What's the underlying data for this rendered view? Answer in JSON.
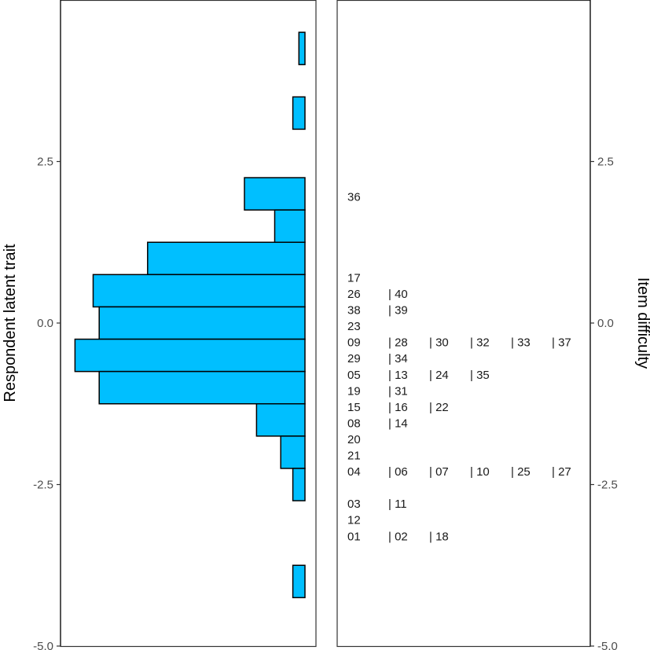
{
  "chart_data": {
    "type": "wright_map",
    "left_panel": {
      "type": "histogram",
      "orientation": "horizontal",
      "ylabel": "Respondent latent trait",
      "yticks": [
        "2.5",
        "0.0",
        "-2.5",
        "-5.0"
      ],
      "ylim": [
        -5.0,
        5.0
      ],
      "bar_color": "#00BFFF",
      "bins": [
        {
          "y_low": 4.0,
          "y_high": 4.5,
          "count": 1
        },
        {
          "y_low": 3.0,
          "y_high": 3.5,
          "count": 2
        },
        {
          "y_low": 1.75,
          "y_high": 2.25,
          "count": 10
        },
        {
          "y_low": 1.25,
          "y_high": 1.75,
          "count": 5
        },
        {
          "y_low": 0.75,
          "y_high": 1.25,
          "count": 26
        },
        {
          "y_low": 0.25,
          "y_high": 0.75,
          "count": 35
        },
        {
          "y_low": -0.25,
          "y_high": 0.25,
          "count": 34
        },
        {
          "y_low": -0.75,
          "y_high": -0.25,
          "count": 38
        },
        {
          "y_low": -1.25,
          "y_high": -0.75,
          "count": 34
        },
        {
          "y_low": -1.75,
          "y_high": -1.25,
          "count": 8
        },
        {
          "y_low": -2.25,
          "y_high": -1.75,
          "count": 4
        },
        {
          "y_low": -2.75,
          "y_high": -2.25,
          "count": 2
        },
        {
          "y_low": -4.25,
          "y_high": -3.75,
          "count": 2
        }
      ]
    },
    "right_panel": {
      "type": "item_map",
      "ylabel": "Item difficulty",
      "yticks": [
        "2.5",
        "0.0",
        "-2.5",
        "-5.0"
      ],
      "ylim": [
        -5.0,
        5.0
      ],
      "rows": [
        {
          "y": 1.95,
          "items": [
            "36"
          ]
        },
        {
          "y": 0.7,
          "items": [
            "17"
          ]
        },
        {
          "y": 0.45,
          "items": [
            "26",
            "| 40"
          ]
        },
        {
          "y": 0.2,
          "items": [
            "38",
            "| 39"
          ]
        },
        {
          "y": -0.05,
          "items": [
            "23"
          ]
        },
        {
          "y": -0.3,
          "items": [
            "09",
            "| 28",
            "| 30",
            "| 32",
            "| 33",
            "| 37"
          ]
        },
        {
          "y": -0.55,
          "items": [
            "29",
            "| 34"
          ]
        },
        {
          "y": -0.8,
          "items": [
            "05",
            "| 13",
            "| 24",
            "| 35"
          ]
        },
        {
          "y": -1.05,
          "items": [
            "19",
            "| 31"
          ]
        },
        {
          "y": -1.3,
          "items": [
            "15",
            "| 16",
            "| 22"
          ]
        },
        {
          "y": -1.55,
          "items": [
            "08",
            "| 14"
          ]
        },
        {
          "y": -1.8,
          "items": [
            "20"
          ]
        },
        {
          "y": -2.05,
          "items": [
            "21"
          ]
        },
        {
          "y": -2.3,
          "items": [
            "04",
            "| 06",
            "| 07",
            "| 10",
            "| 25",
            "| 27"
          ]
        },
        {
          "y": -2.8,
          "items": [
            "03",
            "| 11"
          ]
        },
        {
          "y": -3.05,
          "items": [
            "12"
          ]
        },
        {
          "y": -3.3,
          "items": [
            "01",
            "| 02",
            "| 18"
          ]
        }
      ]
    }
  }
}
